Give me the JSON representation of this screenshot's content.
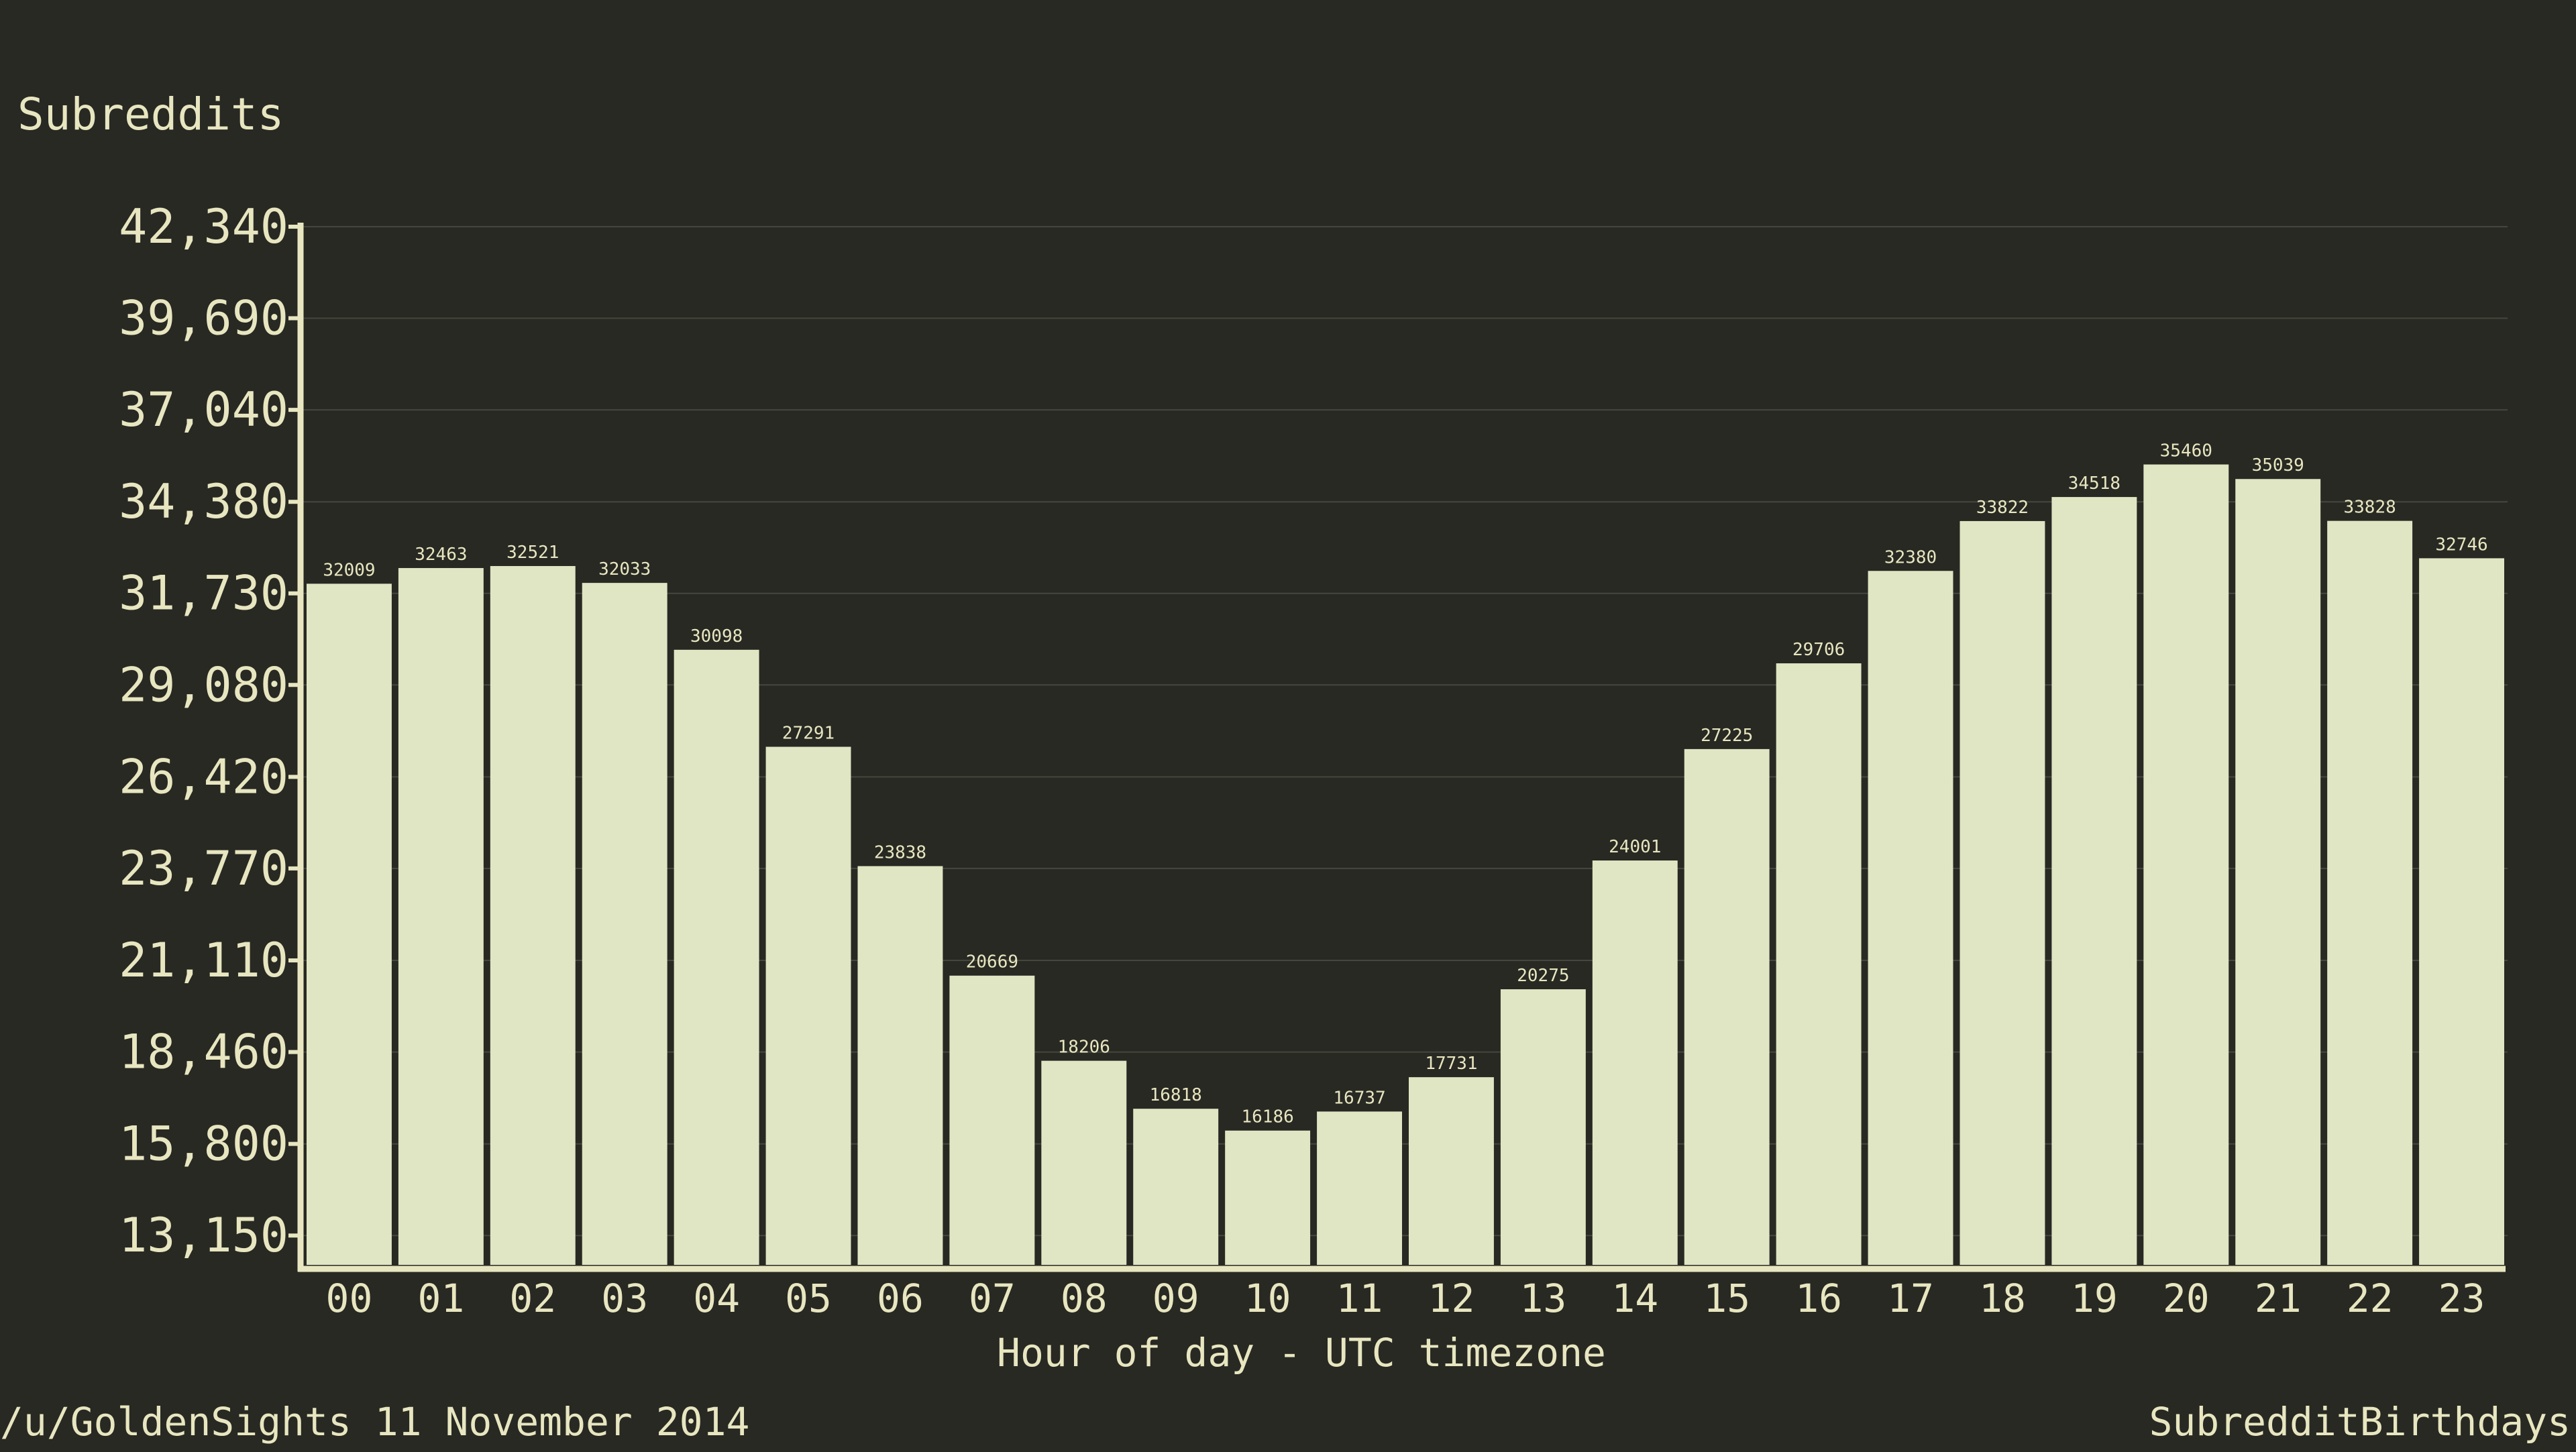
{
  "colors": {
    "background": "#282923",
    "bar_fill": "#e0e5c3",
    "text": "#e8e6c0",
    "axis": "#e8e6c0",
    "gridline": "#45473e"
  },
  "chart_data": {
    "type": "bar",
    "title": "",
    "ylabel": "Subreddits",
    "xlabel": "Hour of day - UTC timezone",
    "categories": [
      "00",
      "01",
      "02",
      "03",
      "04",
      "05",
      "06",
      "07",
      "08",
      "09",
      "10",
      "11",
      "12",
      "13",
      "14",
      "15",
      "16",
      "17",
      "18",
      "19",
      "20",
      "21",
      "22",
      "23"
    ],
    "values": [
      32009,
      32463,
      32521,
      32033,
      30098,
      27291,
      23838,
      20669,
      18206,
      16818,
      16186,
      16737,
      17731,
      20275,
      24001,
      27225,
      29706,
      32380,
      33822,
      34518,
      35460,
      35039,
      33828,
      32746
    ],
    "y_ticks": [
      "13,150",
      "15,800",
      "18,460",
      "21,110",
      "23,770",
      "26,420",
      "29,080",
      "31,730",
      "34,380",
      "37,040",
      "39,690",
      "42,340"
    ],
    "ylim": [
      12300,
      42340
    ],
    "grid": true,
    "legend": "none"
  },
  "footer": {
    "left_text": "/u/GoldenSights 11 November 2014",
    "right_text": "SubredditBirthdays"
  }
}
